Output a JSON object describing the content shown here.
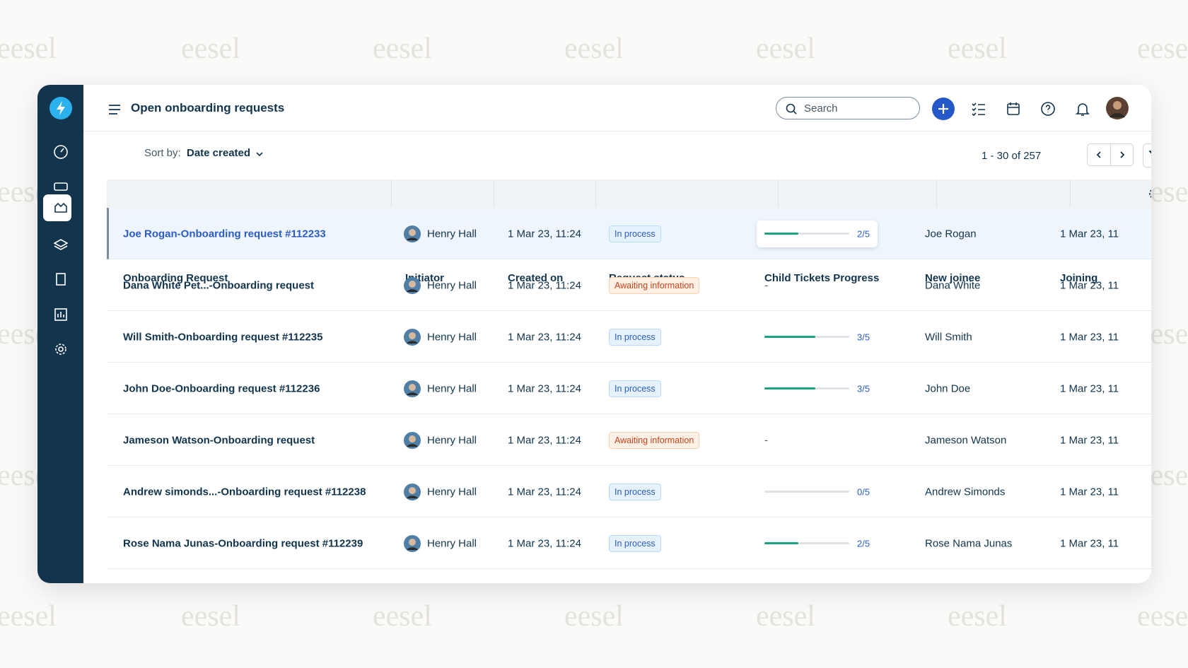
{
  "watermark": "eesel",
  "header": {
    "title": "Open onboarding requests",
    "search_placeholder": "Search"
  },
  "toolbar": {
    "sort_label": "Sort by:",
    "sort_value": "Date created",
    "pagination": "1 - 30 of 257"
  },
  "table": {
    "columns": [
      "Onboarding Request",
      "Initiator",
      "Created on",
      "Request status",
      "Child Tickets Progress",
      "New joinee",
      "Joining"
    ],
    "rows": [
      {
        "request": "Joe Rogan-Onboarding request #112233",
        "initiator": "Henry Hall",
        "created_on": "1 Mar 23, 11:24",
        "status": "In process",
        "progress": {
          "done": 2,
          "total": 5,
          "label": "2/5"
        },
        "new_joinee": "Joe Rogan",
        "joining": "1 Mar 23, 11"
      },
      {
        "request": "Dana White Pet...-Onboarding request",
        "initiator": "Henry Hall",
        "created_on": "1 Mar 23, 11:24",
        "status": "Awaiting information",
        "progress": "-",
        "new_joinee": "Dana White",
        "joining": "1 Mar 23, 11"
      },
      {
        "request": "Will Smith-Onboarding request #112235",
        "initiator": "Henry Hall",
        "created_on": "1 Mar 23, 11:24",
        "status": "In process",
        "progress": {
          "done": 3,
          "total": 5,
          "label": "3/5"
        },
        "new_joinee": "Will Smith",
        "joining": "1 Mar 23, 11"
      },
      {
        "request": "John Doe-Onboarding request #112236",
        "initiator": "Henry Hall",
        "created_on": "1 Mar 23, 11:24",
        "status": "In process",
        "progress": {
          "done": 3,
          "total": 5,
          "label": "3/5"
        },
        "new_joinee": "John Doe",
        "joining": "1 Mar 23, 11"
      },
      {
        "request": "Jameson Watson-Onboarding request",
        "initiator": "Henry Hall",
        "created_on": "1 Mar 23, 11:24",
        "status": "Awaiting information",
        "progress": "-",
        "new_joinee": "Jameson Watson",
        "joining": "1 Mar 23, 11"
      },
      {
        "request": "Andrew simonds...-Onboarding request #112238",
        "initiator": "Henry Hall",
        "created_on": "1 Mar 23, 11:24",
        "status": "In process",
        "progress": {
          "done": 0,
          "total": 5,
          "label": "0/5"
        },
        "new_joinee": "Andrew Simonds",
        "joining": "1 Mar 23, 11"
      },
      {
        "request": "Rose Nama Junas-Onboarding request #112239",
        "initiator": "Henry Hall",
        "created_on": "1 Mar 23, 11:24",
        "status": "In process",
        "progress": {
          "done": 2,
          "total": 5,
          "label": "2/5"
        },
        "new_joinee": "Rose Nama Junas",
        "joining": "1 Mar 23, 11"
      }
    ]
  }
}
